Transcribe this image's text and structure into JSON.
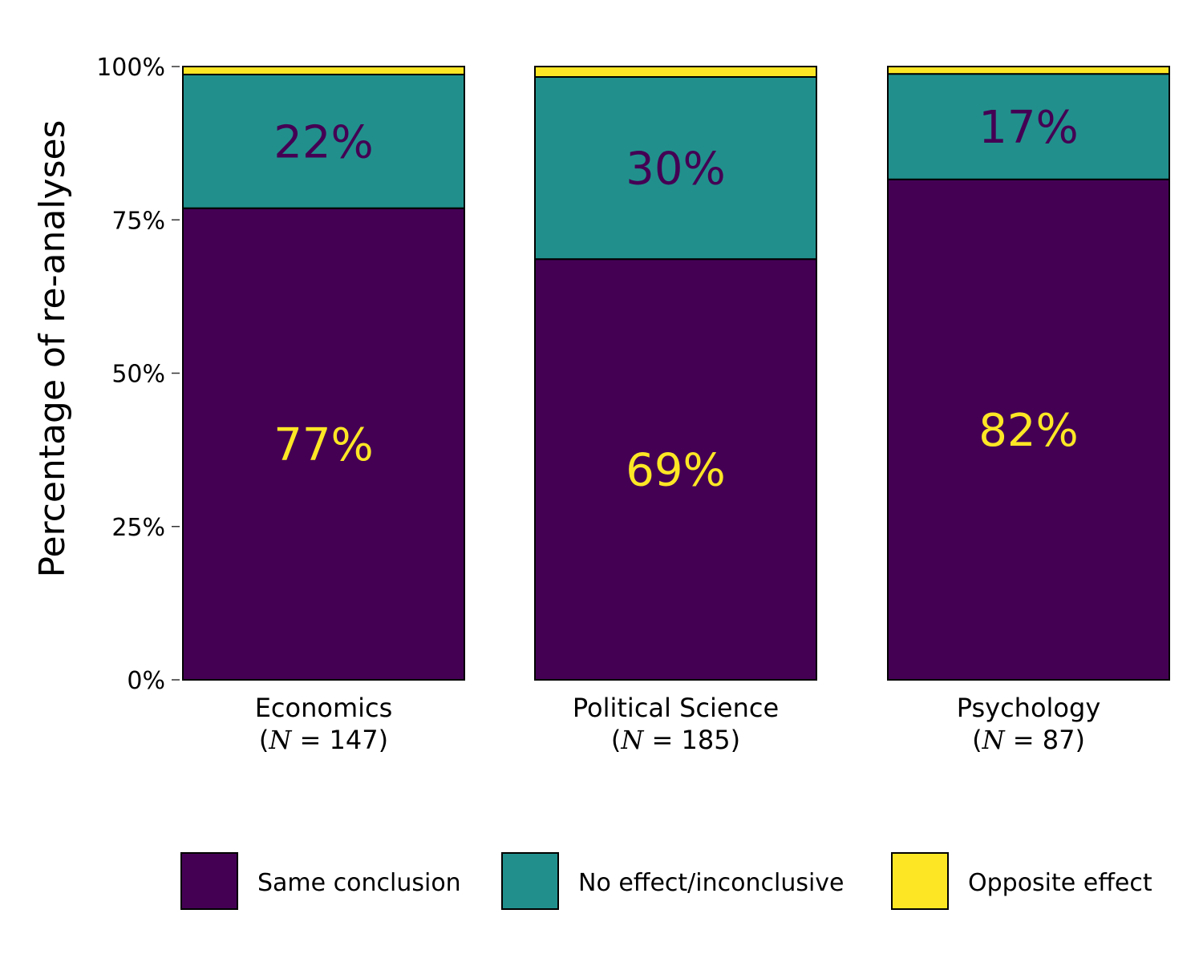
{
  "chart_data": {
    "type": "bar",
    "stacked": true,
    "ylabel": "Percentage of re-analyses",
    "ylim": [
      0,
      100
    ],
    "yticks": [
      {
        "value": 0,
        "label": "0%"
      },
      {
        "value": 25,
        "label": "25%"
      },
      {
        "value": 50,
        "label": "50%"
      },
      {
        "value": 75,
        "label": "75%"
      },
      {
        "value": 100,
        "label": "100%"
      }
    ],
    "categories": [
      {
        "name": "Economics",
        "n_prefix": "(",
        "n_symbol": "N",
        "n_suffix": " = 147)"
      },
      {
        "name": "Political Science",
        "n_prefix": "(",
        "n_symbol": "N",
        "n_suffix": " = 185)"
      },
      {
        "name": "Psychology",
        "n_prefix": "(",
        "n_symbol": "N",
        "n_suffix": " = 87)"
      }
    ],
    "series": [
      {
        "name": "Same conclusion",
        "color": "#440154",
        "label_color": "#FDE725",
        "values": [
          76.9,
          68.6,
          81.6
        ],
        "labels": [
          "77%",
          "69%",
          "82%"
        ]
      },
      {
        "name": "No effect/inconclusive",
        "color": "#21908C",
        "label_color": "#440154",
        "values": [
          21.8,
          29.7,
          17.2
        ],
        "labels": [
          "22%",
          "30%",
          "17%"
        ]
      },
      {
        "name": "Opposite effect",
        "color": "#FDE725",
        "label_color": "#440154",
        "values": [
          1.3,
          1.7,
          1.2
        ],
        "labels": [
          "",
          "",
          ""
        ]
      }
    ],
    "legend_position": "bottom",
    "grid": false
  }
}
